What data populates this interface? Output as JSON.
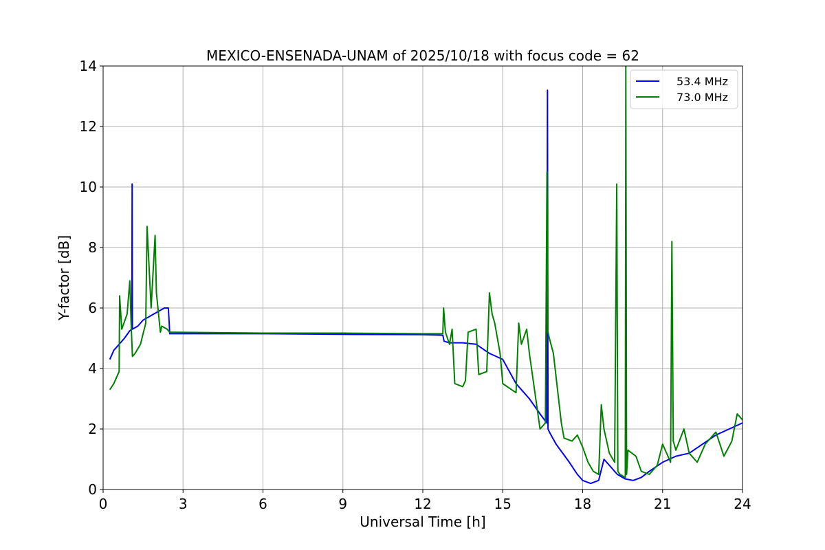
{
  "chart_data": {
    "type": "line",
    "title": "MEXICO-ENSENADA-UNAM of 2025/10/18 with focus code = 62",
    "xlabel": "Universal Time [h]",
    "ylabel": "Y-factor [dB]",
    "xlim": [
      0,
      24
    ],
    "ylim": [
      0,
      14
    ],
    "xticks": [
      0,
      3,
      6,
      9,
      12,
      15,
      18,
      21,
      24
    ],
    "yticks": [
      0,
      2,
      4,
      6,
      8,
      10,
      12,
      14
    ],
    "grid": true,
    "legend_position": "top-right",
    "series": [
      {
        "name": "53.4 MHz",
        "color": "#0000ff",
        "x": [
          0.25,
          0.4,
          0.6,
          0.8,
          1.0,
          1.08,
          1.09,
          1.1,
          1.3,
          1.5,
          1.7,
          1.9,
          2.1,
          2.3,
          2.45,
          2.5,
          6.0,
          9.0,
          12.0,
          12.75,
          12.8,
          13.0,
          13.5,
          14.0,
          14.5,
          15.0,
          15.5,
          16.0,
          16.4,
          16.65,
          16.68,
          16.7,
          16.75,
          17.0,
          17.5,
          17.8,
          18.0,
          18.3,
          18.6,
          18.8,
          19.0,
          19.3,
          19.6,
          19.9,
          20.2,
          20.5,
          21.0,
          21.5,
          22.0,
          22.5,
          23.0,
          23.5,
          24.0
        ],
        "y": [
          4.3,
          4.6,
          4.8,
          5.0,
          5.25,
          5.3,
          10.1,
          5.3,
          5.4,
          5.6,
          5.7,
          5.8,
          5.9,
          6.0,
          6.0,
          5.15,
          5.15,
          5.13,
          5.12,
          5.1,
          4.9,
          4.85,
          4.85,
          4.8,
          4.5,
          4.3,
          3.5,
          3.0,
          2.5,
          2.2,
          13.2,
          2.0,
          1.9,
          1.5,
          0.9,
          0.5,
          0.3,
          0.2,
          0.3,
          1.0,
          0.8,
          0.5,
          0.35,
          0.3,
          0.4,
          0.6,
          0.9,
          1.1,
          1.2,
          1.5,
          1.8,
          2.0,
          2.2
        ]
      },
      {
        "name": "73.0 MHz",
        "color": "#008000",
        "x": [
          0.25,
          0.4,
          0.55,
          0.6,
          0.62,
          0.7,
          0.9,
          1.0,
          1.05,
          1.1,
          1.2,
          1.4,
          1.6,
          1.65,
          1.8,
          1.95,
          2.0,
          2.15,
          2.2,
          2.4,
          2.5,
          6.0,
          9.0,
          12.0,
          12.75,
          12.78,
          12.85,
          13.0,
          13.1,
          13.2,
          13.5,
          13.6,
          13.7,
          14.0,
          14.1,
          14.4,
          14.5,
          14.6,
          14.7,
          14.9,
          15.0,
          15.5,
          15.6,
          15.7,
          15.9,
          16.0,
          16.4,
          16.6,
          16.66,
          16.7,
          16.75,
          16.9,
          17.2,
          17.3,
          17.6,
          17.8,
          18.0,
          18.2,
          18.4,
          18.6,
          18.7,
          18.8,
          19.0,
          19.2,
          19.28,
          19.32,
          19.4,
          19.6,
          19.62,
          19.65,
          19.7,
          20.0,
          20.2,
          20.5,
          20.8,
          21.0,
          21.3,
          21.35,
          21.4,
          21.5,
          21.8,
          22.0,
          22.3,
          22.6,
          23.0,
          23.3,
          23.6,
          23.8,
          24.0
        ],
        "y": [
          3.3,
          3.5,
          3.8,
          3.9,
          6.4,
          5.3,
          5.8,
          6.9,
          5.5,
          4.4,
          4.5,
          4.8,
          5.5,
          8.7,
          6.0,
          8.4,
          6.5,
          5.2,
          5.4,
          5.3,
          5.2,
          5.17,
          5.17,
          5.15,
          5.15,
          6.0,
          5.2,
          4.8,
          5.3,
          3.5,
          3.4,
          3.6,
          5.2,
          5.3,
          3.8,
          3.9,
          6.5,
          5.8,
          5.5,
          4.5,
          3.5,
          3.2,
          5.5,
          4.8,
          5.3,
          4.5,
          2.0,
          2.2,
          10.5,
          5.2,
          5.0,
          4.5,
          2.2,
          1.7,
          1.6,
          1.8,
          1.4,
          0.9,
          0.6,
          0.5,
          2.8,
          2.0,
          1.2,
          0.9,
          10.1,
          0.6,
          0.5,
          0.4,
          14.0,
          0.5,
          1.3,
          1.1,
          0.6,
          0.5,
          0.8,
          1.5,
          0.9,
          8.2,
          1.6,
          1.3,
          2.0,
          1.2,
          0.9,
          1.5,
          1.9,
          1.1,
          1.6,
          2.5,
          2.3
        ]
      }
    ]
  }
}
